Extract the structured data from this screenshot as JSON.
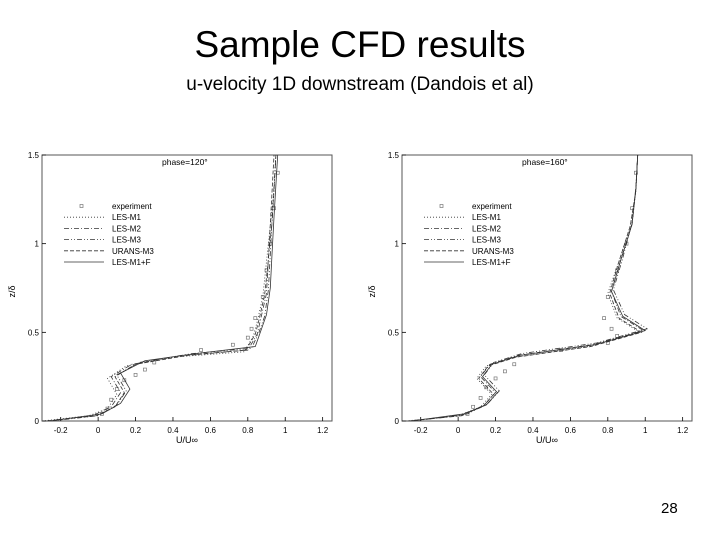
{
  "slide": {
    "title": "Sample CFD results",
    "subtitle": "u-velocity 1D downstream (Dandois et al)",
    "page_number": "28"
  },
  "colors": {
    "background": "#ffffff",
    "ink": "#000000",
    "frame": "#555555"
  },
  "chart_data": [
    {
      "type": "line",
      "annotation": "phase=120°",
      "xlabel": "U/U∞",
      "ylabel": "z/δ",
      "xlim": [
        -0.3,
        1.25
      ],
      "ylim": [
        0,
        1.5
      ],
      "xticks": [
        "-0.2",
        "0",
        "0.2",
        "0.4",
        "0.6",
        "0.8",
        "1",
        "1.2"
      ],
      "yticks": [
        "0",
        "0.5",
        "1",
        "1.5"
      ],
      "legend_position": "top-left",
      "series": [
        {
          "name": "experiment",
          "style": "markers",
          "points": [
            [
              0.02,
              0.04
            ],
            [
              0.05,
              0.07
            ],
            [
              0.07,
              0.12
            ],
            [
              0.1,
              0.18
            ],
            [
              0.14,
              0.23
            ],
            [
              0.2,
              0.26
            ],
            [
              0.25,
              0.29
            ],
            [
              0.3,
              0.33
            ],
            [
              0.55,
              0.4
            ],
            [
              0.72,
              0.43
            ],
            [
              0.8,
              0.47
            ],
            [
              0.82,
              0.52
            ],
            [
              0.84,
              0.58
            ],
            [
              0.88,
              0.7
            ],
            [
              0.9,
              0.85
            ],
            [
              0.92,
              1.0
            ],
            [
              0.94,
              1.2
            ],
            [
              0.96,
              1.4
            ]
          ]
        },
        {
          "name": "LES-M1",
          "style": "dotted",
          "points": [
            [
              -0.3,
              0.0
            ],
            [
              -0.05,
              0.03
            ],
            [
              0.05,
              0.07
            ],
            [
              0.1,
              0.15
            ],
            [
              0.05,
              0.24
            ],
            [
              0.15,
              0.31
            ],
            [
              0.4,
              0.36
            ],
            [
              0.78,
              0.39
            ],
            [
              0.83,
              0.48
            ],
            [
              0.85,
              0.56
            ],
            [
              0.88,
              0.7
            ],
            [
              0.9,
              0.9
            ],
            [
              0.92,
              1.1
            ],
            [
              0.94,
              1.3
            ],
            [
              0.95,
              1.5
            ]
          ]
        },
        {
          "name": "LES-M2",
          "style": "dashdot",
          "points": [
            [
              -0.28,
              0.0
            ],
            [
              -0.03,
              0.03
            ],
            [
              0.07,
              0.08
            ],
            [
              0.12,
              0.16
            ],
            [
              0.07,
              0.25
            ],
            [
              0.18,
              0.32
            ],
            [
              0.45,
              0.37
            ],
            [
              0.8,
              0.4
            ],
            [
              0.85,
              0.49
            ],
            [
              0.87,
              0.58
            ],
            [
              0.9,
              0.72
            ],
            [
              0.91,
              0.92
            ],
            [
              0.93,
              1.12
            ],
            [
              0.94,
              1.3
            ],
            [
              0.95,
              1.5
            ]
          ]
        },
        {
          "name": "LES-M3",
          "style": "dashdotdot",
          "points": [
            [
              -0.25,
              0.0
            ],
            [
              0.0,
              0.03
            ],
            [
              0.1,
              0.09
            ],
            [
              0.15,
              0.17
            ],
            [
              0.1,
              0.26
            ],
            [
              0.22,
              0.33
            ],
            [
              0.5,
              0.38
            ],
            [
              0.82,
              0.41
            ],
            [
              0.86,
              0.5
            ],
            [
              0.89,
              0.59
            ],
            [
              0.91,
              0.74
            ],
            [
              0.92,
              0.94
            ],
            [
              0.93,
              1.14
            ],
            [
              0.94,
              1.32
            ],
            [
              0.95,
              1.5
            ]
          ]
        },
        {
          "name": "URANS-M3",
          "style": "dashed",
          "points": [
            [
              -0.27,
              0.0
            ],
            [
              -0.01,
              0.03
            ],
            [
              0.09,
              0.08
            ],
            [
              0.14,
              0.16
            ],
            [
              0.09,
              0.25
            ],
            [
              0.2,
              0.32
            ],
            [
              0.48,
              0.37
            ],
            [
              0.79,
              0.4
            ],
            [
              0.84,
              0.49
            ],
            [
              0.86,
              0.57
            ],
            [
              0.89,
              0.71
            ],
            [
              0.91,
              0.91
            ],
            [
              0.92,
              1.11
            ],
            [
              0.93,
              1.3
            ],
            [
              0.94,
              1.5
            ]
          ]
        },
        {
          "name": "LES-M1+F",
          "style": "solid",
          "points": [
            [
              -0.26,
              0.0
            ],
            [
              0.02,
              0.04
            ],
            [
              0.12,
              0.1
            ],
            [
              0.17,
              0.18
            ],
            [
              0.12,
              0.27
            ],
            [
              0.25,
              0.34
            ],
            [
              0.52,
              0.38
            ],
            [
              0.84,
              0.42
            ],
            [
              0.87,
              0.51
            ],
            [
              0.9,
              0.6
            ],
            [
              0.92,
              0.75
            ],
            [
              0.93,
              0.95
            ],
            [
              0.94,
              1.15
            ],
            [
              0.95,
              1.33
            ],
            [
              0.96,
              1.5
            ]
          ]
        }
      ]
    },
    {
      "type": "line",
      "annotation": "phase=160°",
      "xlabel": "U/U∞",
      "ylabel": "z/δ",
      "xlim": [
        -0.3,
        1.25
      ],
      "ylim": [
        0,
        1.5
      ],
      "xticks": [
        "-0.2",
        "0",
        "0.2",
        "0.4",
        "0.6",
        "0.8",
        "1",
        "1.2"
      ],
      "yticks": [
        "0",
        "0.5",
        "1",
        "1.5"
      ],
      "legend_position": "top-left",
      "series": [
        {
          "name": "experiment",
          "style": "markers",
          "points": [
            [
              0.05,
              0.04
            ],
            [
              0.08,
              0.08
            ],
            [
              0.12,
              0.13
            ],
            [
              0.15,
              0.19
            ],
            [
              0.2,
              0.24
            ],
            [
              0.25,
              0.28
            ],
            [
              0.3,
              0.32
            ],
            [
              0.55,
              0.4
            ],
            [
              0.8,
              0.44
            ],
            [
              0.85,
              0.48
            ],
            [
              0.82,
              0.52
            ],
            [
              0.78,
              0.58
            ],
            [
              0.8,
              0.7
            ],
            [
              0.85,
              0.85
            ],
            [
              0.9,
              1.0
            ],
            [
              0.93,
              1.2
            ],
            [
              0.95,
              1.4
            ]
          ]
        },
        {
          "name": "LES-M1",
          "style": "dotted",
          "points": [
            [
              -0.28,
              0.0
            ],
            [
              0.0,
              0.03
            ],
            [
              0.12,
              0.08
            ],
            [
              0.18,
              0.15
            ],
            [
              0.1,
              0.24
            ],
            [
              0.15,
              0.31
            ],
            [
              0.3,
              0.36
            ],
            [
              0.7,
              0.42
            ],
            [
              0.97,
              0.5
            ],
            [
              0.85,
              0.58
            ],
            [
              0.8,
              0.72
            ],
            [
              0.86,
              0.9
            ],
            [
              0.92,
              1.1
            ],
            [
              0.95,
              1.3
            ],
            [
              0.96,
              1.5
            ]
          ]
        },
        {
          "name": "LES-M2",
          "style": "dashdot",
          "points": [
            [
              -0.26,
              0.0
            ],
            [
              0.02,
              0.03
            ],
            [
              0.14,
              0.09
            ],
            [
              0.2,
              0.16
            ],
            [
              0.12,
              0.25
            ],
            [
              0.17,
              0.32
            ],
            [
              0.32,
              0.37
            ],
            [
              0.72,
              0.43
            ],
            [
              0.99,
              0.51
            ],
            [
              0.87,
              0.59
            ],
            [
              0.82,
              0.73
            ],
            [
              0.87,
              0.91
            ],
            [
              0.93,
              1.11
            ],
            [
              0.95,
              1.31
            ],
            [
              0.96,
              1.5
            ]
          ]
        },
        {
          "name": "LES-M3",
          "style": "dashdotdot",
          "points": [
            [
              -0.24,
              0.0
            ],
            [
              0.05,
              0.04
            ],
            [
              0.16,
              0.1
            ],
            [
              0.22,
              0.17
            ],
            [
              0.14,
              0.26
            ],
            [
              0.19,
              0.33
            ],
            [
              0.34,
              0.38
            ],
            [
              0.74,
              0.44
            ],
            [
              1.01,
              0.52
            ],
            [
              0.89,
              0.6
            ],
            [
              0.83,
              0.74
            ],
            [
              0.88,
              0.92
            ],
            [
              0.93,
              1.12
            ],
            [
              0.95,
              1.32
            ],
            [
              0.96,
              1.5
            ]
          ]
        },
        {
          "name": "URANS-M3",
          "style": "dashed",
          "points": [
            [
              -0.27,
              0.0
            ],
            [
              0.01,
              0.03
            ],
            [
              0.13,
              0.08
            ],
            [
              0.19,
              0.15
            ],
            [
              0.11,
              0.24
            ],
            [
              0.16,
              0.31
            ],
            [
              0.31,
              0.36
            ],
            [
              0.71,
              0.42
            ],
            [
              0.98,
              0.5
            ],
            [
              0.86,
              0.58
            ],
            [
              0.81,
              0.72
            ],
            [
              0.86,
              0.9
            ],
            [
              0.92,
              1.1
            ],
            [
              0.95,
              1.3
            ],
            [
              0.96,
              1.5
            ]
          ]
        },
        {
          "name": "LES-M1+F",
          "style": "solid",
          "points": [
            [
              -0.25,
              0.0
            ],
            [
              0.03,
              0.04
            ],
            [
              0.15,
              0.09
            ],
            [
              0.21,
              0.16
            ],
            [
              0.13,
              0.25
            ],
            [
              0.18,
              0.32
            ],
            [
              0.33,
              0.37
            ],
            [
              0.73,
              0.43
            ],
            [
              1.0,
              0.51
            ],
            [
              0.88,
              0.59
            ],
            [
              0.82,
              0.73
            ],
            [
              0.87,
              0.91
            ],
            [
              0.93,
              1.11
            ],
            [
              0.95,
              1.31
            ],
            [
              0.96,
              1.5
            ]
          ]
        }
      ]
    }
  ]
}
